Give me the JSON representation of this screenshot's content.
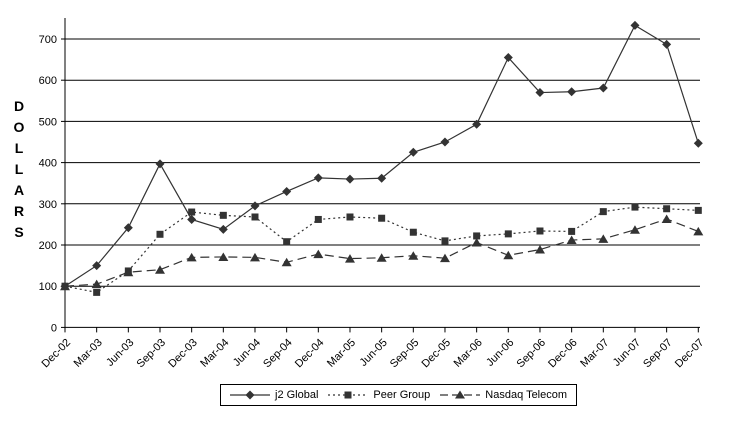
{
  "chart_data": {
    "type": "line",
    "title": "",
    "xlabel": "",
    "ylabel": "DOLLARS",
    "ylim": [
      0,
      750
    ],
    "yticks": [
      0,
      100,
      200,
      300,
      400,
      500,
      600,
      700
    ],
    "grid": true,
    "legend_position": "bottom-center",
    "categories": [
      "Dec-02",
      "Mar-03",
      "Jun-03",
      "Sep-03",
      "Dec-03",
      "Mar-04",
      "Jun-04",
      "Sep-04",
      "Dec-04",
      "Mar-05",
      "Jun-05",
      "Sep-05",
      "Dec-05",
      "Mar-06",
      "Jun-06",
      "Sep-06",
      "Dec-06",
      "Mar-07",
      "Jun-07",
      "Sep-07",
      "Dec-07"
    ],
    "series": [
      {
        "name": "j2 Global",
        "marker": "diamond",
        "line_style": "solid",
        "values": [
          100,
          150,
          242,
          397,
          262,
          238,
          295,
          330,
          363,
          360,
          362,
          425,
          450,
          493,
          655,
          570,
          572,
          581,
          733,
          687,
          447
        ]
      },
      {
        "name": "Peer Group",
        "marker": "square",
        "line_style": "dotted",
        "values": [
          100,
          85,
          137,
          226,
          280,
          272,
          268,
          208,
          262,
          268,
          265,
          231,
          210,
          222,
          227,
          234,
          233,
          281,
          292,
          288,
          284
        ]
      },
      {
        "name": "Nasdaq Telecom",
        "marker": "triangle",
        "line_style": "dashed",
        "values": [
          100,
          105,
          134,
          140,
          170,
          171,
          170,
          158,
          178,
          167,
          169,
          174,
          168,
          206,
          175,
          189,
          212,
          215,
          237,
          263,
          233
        ]
      }
    ]
  },
  "colors": {
    "series": "#333333",
    "grid": "#000000",
    "text": "#000000",
    "background": "#ffffff"
  }
}
